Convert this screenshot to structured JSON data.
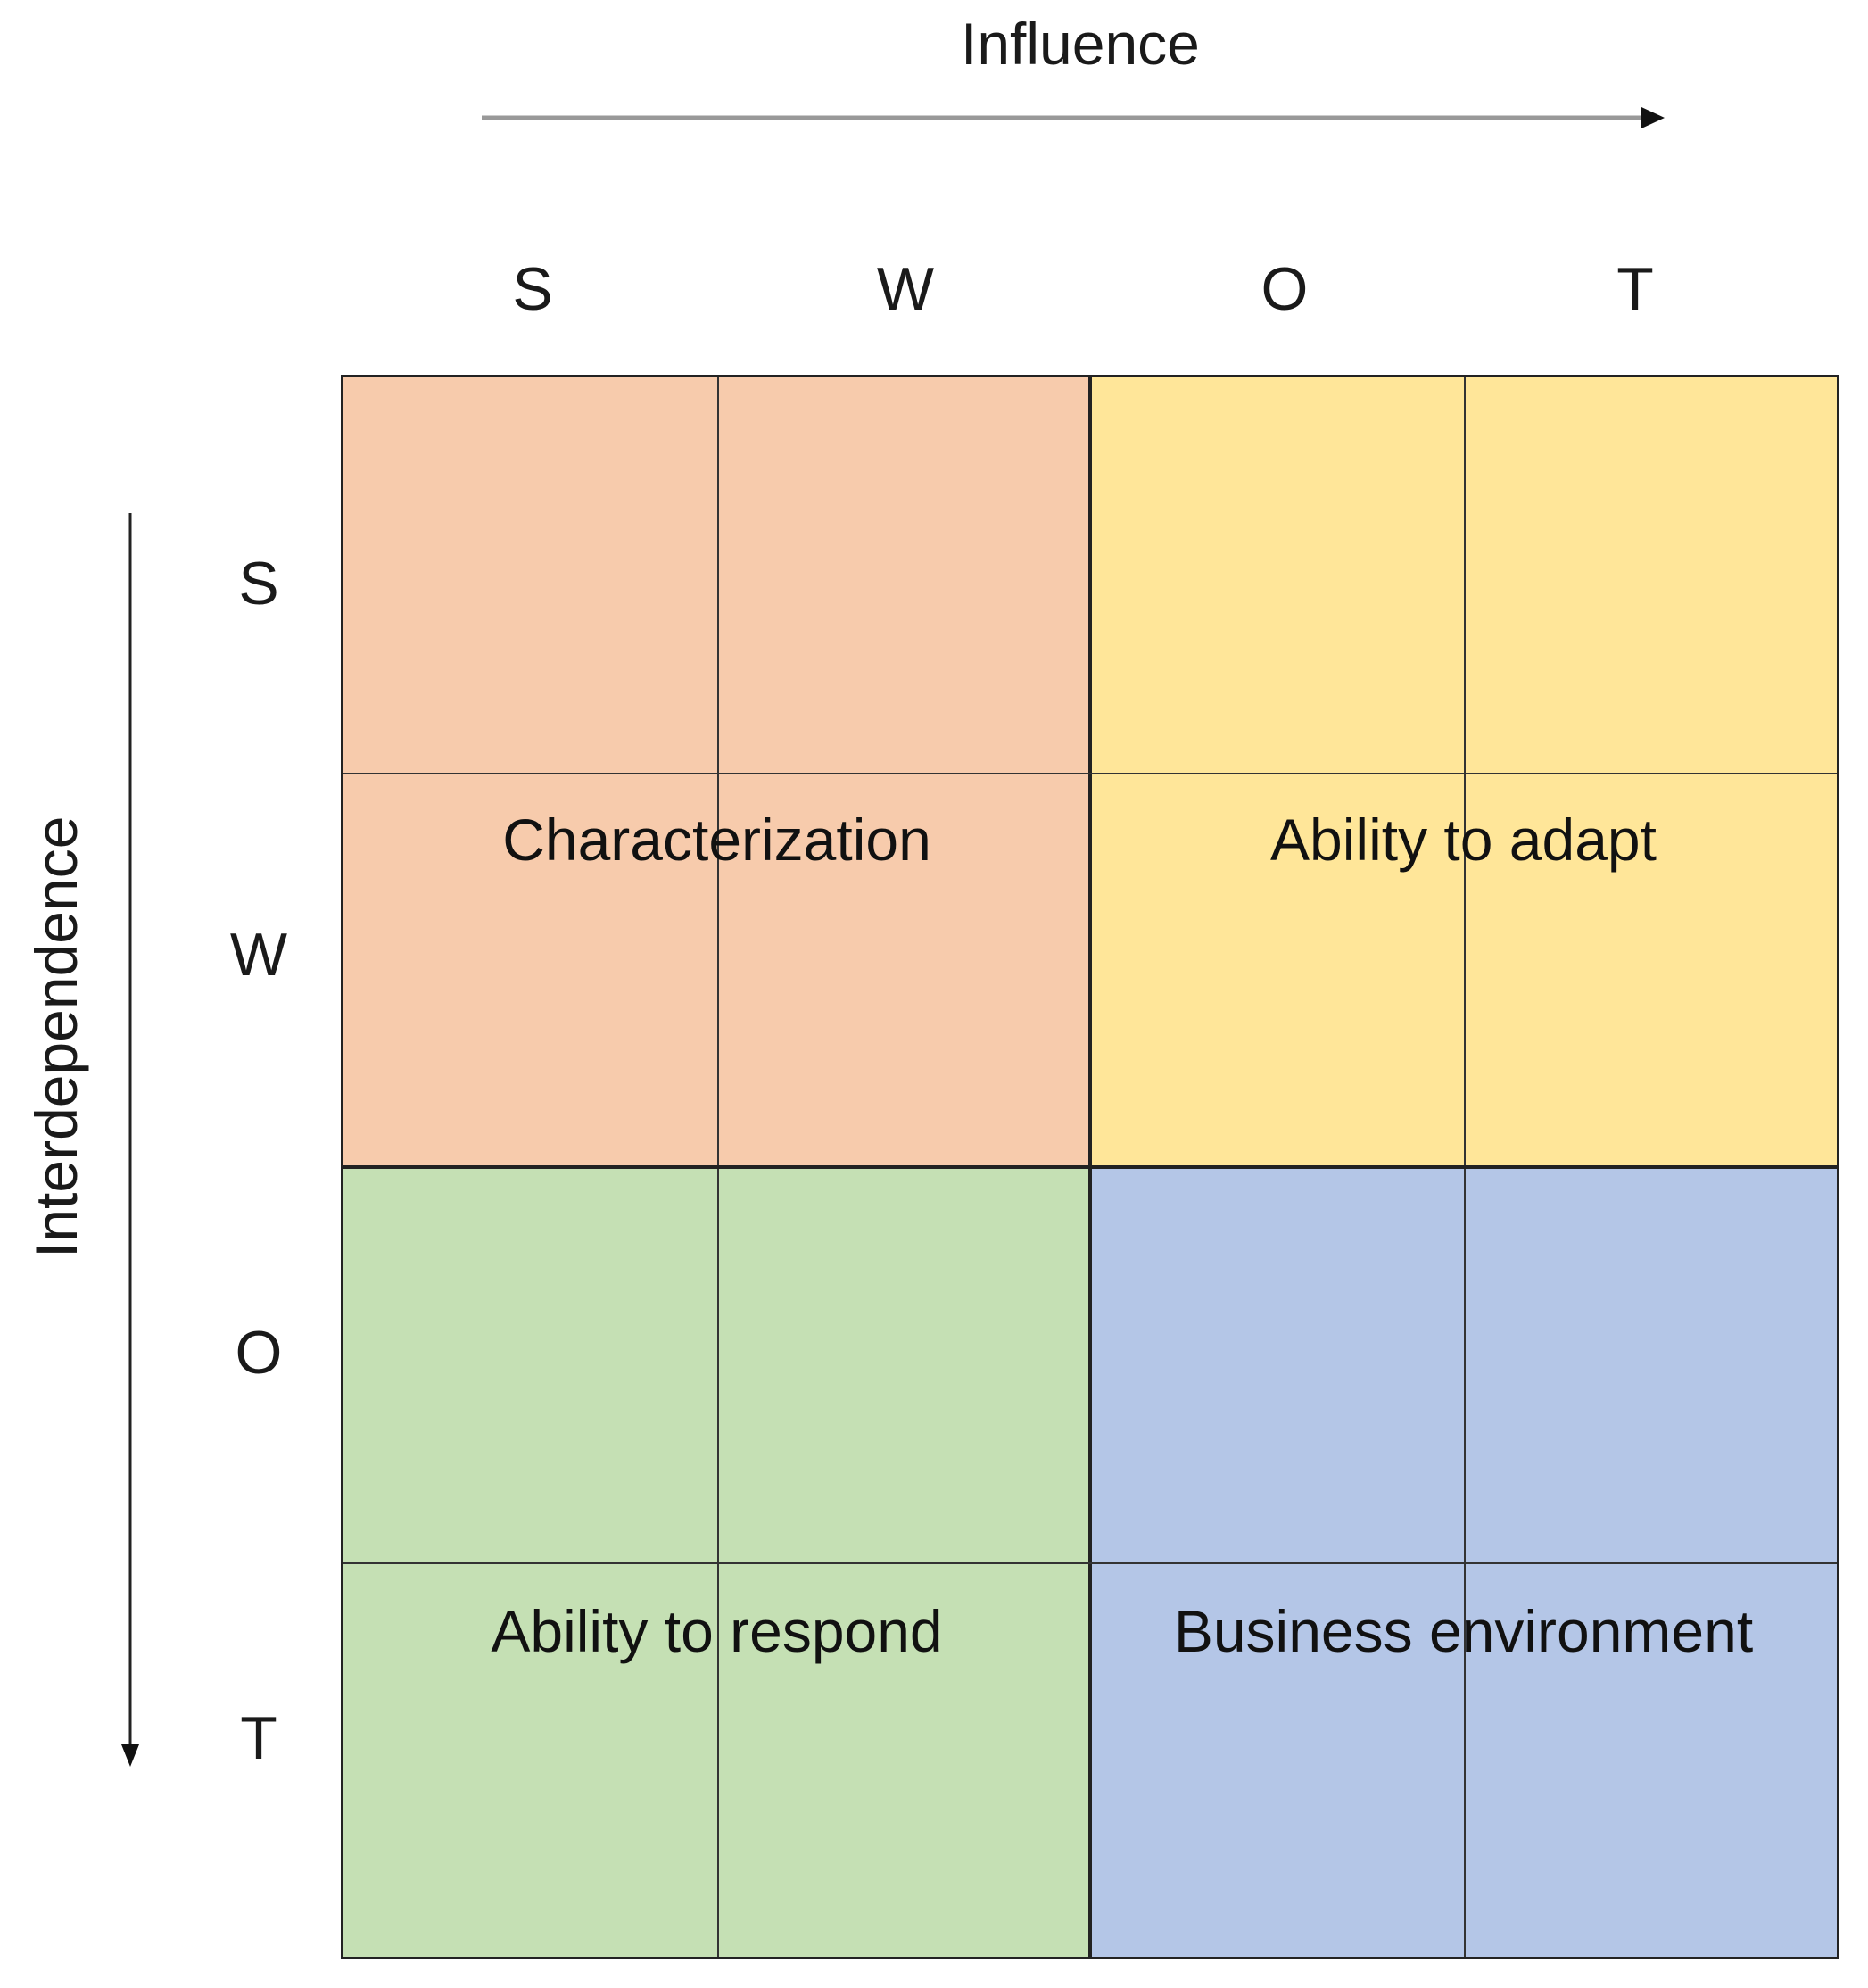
{
  "axes": {
    "x_title": "Influence",
    "y_title": "Interdependence",
    "columns": [
      "S",
      "W",
      "O",
      "T"
    ],
    "rows": [
      "S",
      "W",
      "O",
      "T"
    ]
  },
  "quadrants": [
    {
      "label": "Characterization",
      "color": "#F7CBAC"
    },
    {
      "label": "Ability to adapt",
      "color": "#FFE699"
    },
    {
      "label": "Ability to respond",
      "color": "#C5E0B4"
    },
    {
      "label": "Business environment",
      "color": "#B4C6E7"
    }
  ]
}
